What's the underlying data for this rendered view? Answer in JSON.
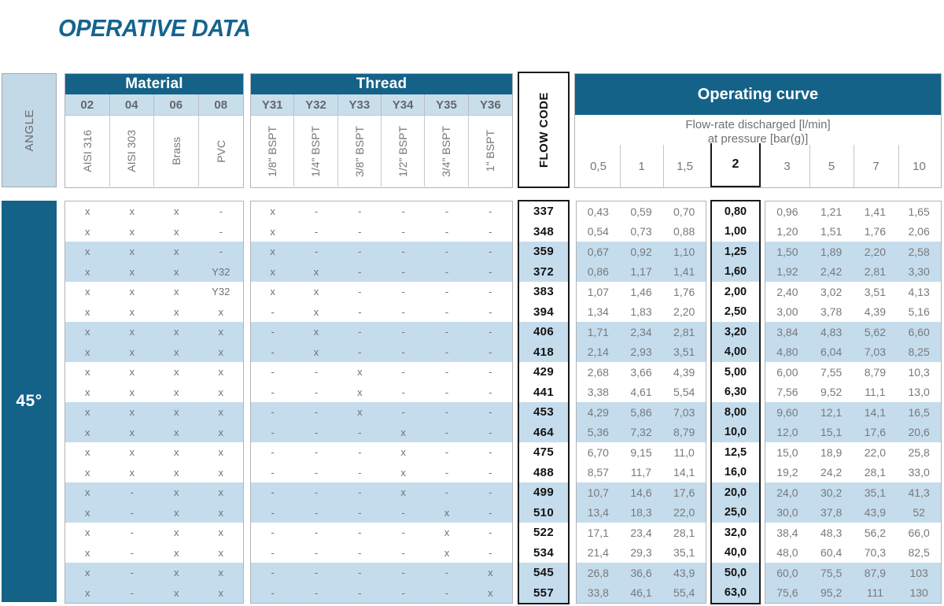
{
  "title": "OPERATIVE DATA",
  "angle": {
    "label": "ANGLE",
    "value": "45°"
  },
  "material": {
    "header": "Material",
    "codes": [
      "02",
      "04",
      "06",
      "08"
    ],
    "names": [
      "AISI 316",
      "AISI 303",
      "Brass",
      "PVC"
    ]
  },
  "thread": {
    "header": "Thread",
    "codes": [
      "Y31",
      "Y32",
      "Y33",
      "Y34",
      "Y35",
      "Y36"
    ],
    "names": [
      "1/8\" BSPT",
      "1/4\" BSPT",
      "3/8\" BSPT",
      "1/2\" BSPT",
      "3/4\" BSPT",
      "1\" BSPT"
    ]
  },
  "flow_code_label": "FLOW CODE",
  "operating_curve": {
    "header": "Operating curve",
    "subtitle_line1": "Flow-rate discharged [l/min]",
    "subtitle_line2": "at pressure [bar(g)]",
    "pressures_low": [
      "0,5",
      "1",
      "1,5"
    ],
    "pressure_highlight": "2",
    "pressures_high": [
      "3",
      "5",
      "7",
      "10"
    ]
  },
  "rows": [
    {
      "flow_code": "337",
      "material": [
        "x",
        "x",
        "x",
        "-"
      ],
      "thread": [
        "x",
        "-",
        "-",
        "-",
        "-",
        "-"
      ],
      "flow_low": [
        "0,43",
        "0,59",
        "0,70"
      ],
      "flow_2": "0,80",
      "flow_high": [
        "0,96",
        "1,21",
        "1,41",
        "1,65"
      ]
    },
    {
      "flow_code": "348",
      "material": [
        "x",
        "x",
        "x",
        "-"
      ],
      "thread": [
        "x",
        "-",
        "-",
        "-",
        "-",
        "-"
      ],
      "flow_low": [
        "0,54",
        "0,73",
        "0,88"
      ],
      "flow_2": "1,00",
      "flow_high": [
        "1,20",
        "1,51",
        "1,76",
        "2,06"
      ]
    },
    {
      "flow_code": "359",
      "material": [
        "x",
        "x",
        "x",
        "-"
      ],
      "thread": [
        "x",
        "-",
        "-",
        "-",
        "-",
        "-"
      ],
      "flow_low": [
        "0,67",
        "0,92",
        "1,10"
      ],
      "flow_2": "1,25",
      "flow_high": [
        "1,50",
        "1,89",
        "2,20",
        "2,58"
      ]
    },
    {
      "flow_code": "372",
      "material": [
        "x",
        "x",
        "x",
        "Y32"
      ],
      "thread": [
        "x",
        "x",
        "-",
        "-",
        "-",
        "-"
      ],
      "flow_low": [
        "0,86",
        "1,17",
        "1,41"
      ],
      "flow_2": "1,60",
      "flow_high": [
        "1,92",
        "2,42",
        "2,81",
        "3,30"
      ]
    },
    {
      "flow_code": "383",
      "material": [
        "x",
        "x",
        "x",
        "Y32"
      ],
      "thread": [
        "x",
        "x",
        "-",
        "-",
        "-",
        "-"
      ],
      "flow_low": [
        "1,07",
        "1,46",
        "1,76"
      ],
      "flow_2": "2,00",
      "flow_high": [
        "2,40",
        "3,02",
        "3,51",
        "4,13"
      ]
    },
    {
      "flow_code": "394",
      "material": [
        "x",
        "x",
        "x",
        "x"
      ],
      "thread": [
        "-",
        "x",
        "-",
        "-",
        "-",
        "-"
      ],
      "flow_low": [
        "1,34",
        "1,83",
        "2,20"
      ],
      "flow_2": "2,50",
      "flow_high": [
        "3,00",
        "3,78",
        "4,39",
        "5,16"
      ]
    },
    {
      "flow_code": "406",
      "material": [
        "x",
        "x",
        "x",
        "x"
      ],
      "thread": [
        "-",
        "x",
        "-",
        "-",
        "-",
        "-"
      ],
      "flow_low": [
        "1,71",
        "2,34",
        "2,81"
      ],
      "flow_2": "3,20",
      "flow_high": [
        "3,84",
        "4,83",
        "5,62",
        "6,60"
      ]
    },
    {
      "flow_code": "418",
      "material": [
        "x",
        "x",
        "x",
        "x"
      ],
      "thread": [
        "-",
        "x",
        "-",
        "-",
        "-",
        "-"
      ],
      "flow_low": [
        "2,14",
        "2,93",
        "3,51"
      ],
      "flow_2": "4,00",
      "flow_high": [
        "4,80",
        "6,04",
        "7,03",
        "8,25"
      ]
    },
    {
      "flow_code": "429",
      "material": [
        "x",
        "x",
        "x",
        "x"
      ],
      "thread": [
        "-",
        "-",
        "x",
        "-",
        "-",
        "-"
      ],
      "flow_low": [
        "2,68",
        "3,66",
        "4,39"
      ],
      "flow_2": "5,00",
      "flow_high": [
        "6,00",
        "7,55",
        "8,79",
        "10,3"
      ]
    },
    {
      "flow_code": "441",
      "material": [
        "x",
        "x",
        "x",
        "x"
      ],
      "thread": [
        "-",
        "-",
        "x",
        "-",
        "-",
        "-"
      ],
      "flow_low": [
        "3,38",
        "4,61",
        "5,54"
      ],
      "flow_2": "6,30",
      "flow_high": [
        "7,56",
        "9,52",
        "11,1",
        "13,0"
      ]
    },
    {
      "flow_code": "453",
      "material": [
        "x",
        "x",
        "x",
        "x"
      ],
      "thread": [
        "-",
        "-",
        "x",
        "-",
        "-",
        "-"
      ],
      "flow_low": [
        "4,29",
        "5,86",
        "7,03"
      ],
      "flow_2": "8,00",
      "flow_high": [
        "9,60",
        "12,1",
        "14,1",
        "16,5"
      ]
    },
    {
      "flow_code": "464",
      "material": [
        "x",
        "x",
        "x",
        "x"
      ],
      "thread": [
        "-",
        "-",
        "-",
        "x",
        "-",
        "-"
      ],
      "flow_low": [
        "5,36",
        "7,32",
        "8,79"
      ],
      "flow_2": "10,0",
      "flow_high": [
        "12,0",
        "15,1",
        "17,6",
        "20,6"
      ]
    },
    {
      "flow_code": "475",
      "material": [
        "x",
        "x",
        "x",
        "x"
      ],
      "thread": [
        "-",
        "-",
        "-",
        "x",
        "-",
        "-"
      ],
      "flow_low": [
        "6,70",
        "9,15",
        "11,0"
      ],
      "flow_2": "12,5",
      "flow_high": [
        "15,0",
        "18,9",
        "22,0",
        "25,8"
      ]
    },
    {
      "flow_code": "488",
      "material": [
        "x",
        "x",
        "x",
        "x"
      ],
      "thread": [
        "-",
        "-",
        "-",
        "x",
        "-",
        "-"
      ],
      "flow_low": [
        "8,57",
        "11,7",
        "14,1"
      ],
      "flow_2": "16,0",
      "flow_high": [
        "19,2",
        "24,2",
        "28,1",
        "33,0"
      ]
    },
    {
      "flow_code": "499",
      "material": [
        "x",
        "-",
        "x",
        "x"
      ],
      "thread": [
        "-",
        "-",
        "-",
        "x",
        "-",
        "-"
      ],
      "flow_low": [
        "10,7",
        "14,6",
        "17,6"
      ],
      "flow_2": "20,0",
      "flow_high": [
        "24,0",
        "30,2",
        "35,1",
        "41,3"
      ]
    },
    {
      "flow_code": "510",
      "material": [
        "x",
        "-",
        "x",
        "x"
      ],
      "thread": [
        "-",
        "-",
        "-",
        "-",
        "x",
        "-"
      ],
      "flow_low": [
        "13,4",
        "18,3",
        "22,0"
      ],
      "flow_2": "25,0",
      "flow_high": [
        "30,0",
        "37,8",
        "43,9",
        "52"
      ]
    },
    {
      "flow_code": "522",
      "material": [
        "x",
        "-",
        "x",
        "x"
      ],
      "thread": [
        "-",
        "-",
        "-",
        "-",
        "x",
        "-"
      ],
      "flow_low": [
        "17,1",
        "23,4",
        "28,1"
      ],
      "flow_2": "32,0",
      "flow_high": [
        "38,4",
        "48,3",
        "56,2",
        "66,0"
      ]
    },
    {
      "flow_code": "534",
      "material": [
        "x",
        "-",
        "x",
        "x"
      ],
      "thread": [
        "-",
        "-",
        "-",
        "-",
        "x",
        "-"
      ],
      "flow_low": [
        "21,4",
        "29,3",
        "35,1"
      ],
      "flow_2": "40,0",
      "flow_high": [
        "48,0",
        "60,4",
        "70,3",
        "82,5"
      ]
    },
    {
      "flow_code": "545",
      "material": [
        "x",
        "-",
        "x",
        "x"
      ],
      "thread": [
        "-",
        "-",
        "-",
        "-",
        "-",
        "x"
      ],
      "flow_low": [
        "26,8",
        "36,6",
        "43,9"
      ],
      "flow_2": "50,0",
      "flow_high": [
        "60,0",
        "75,5",
        "87,9",
        "103"
      ]
    },
    {
      "flow_code": "557",
      "material": [
        "x",
        "-",
        "x",
        "x"
      ],
      "thread": [
        "-",
        "-",
        "-",
        "-",
        "-",
        "x"
      ],
      "flow_low": [
        "33,8",
        "46,1",
        "55,4"
      ],
      "flow_2": "63,0",
      "flow_high": [
        "75,6",
        "95,2",
        "111",
        "130"
      ]
    }
  ],
  "colors": {
    "dark_blue": "#156289",
    "title_blue": "#15648F",
    "light_blue_row": "#C5DCEC",
    "light_blue_header": "#C9DEEB",
    "angle_box": "#C3D9E7",
    "gray_text": "#75777B",
    "dark_text": "#121212",
    "border_gray": "#B0B4B8",
    "border_dark": "#1A1A1A"
  }
}
